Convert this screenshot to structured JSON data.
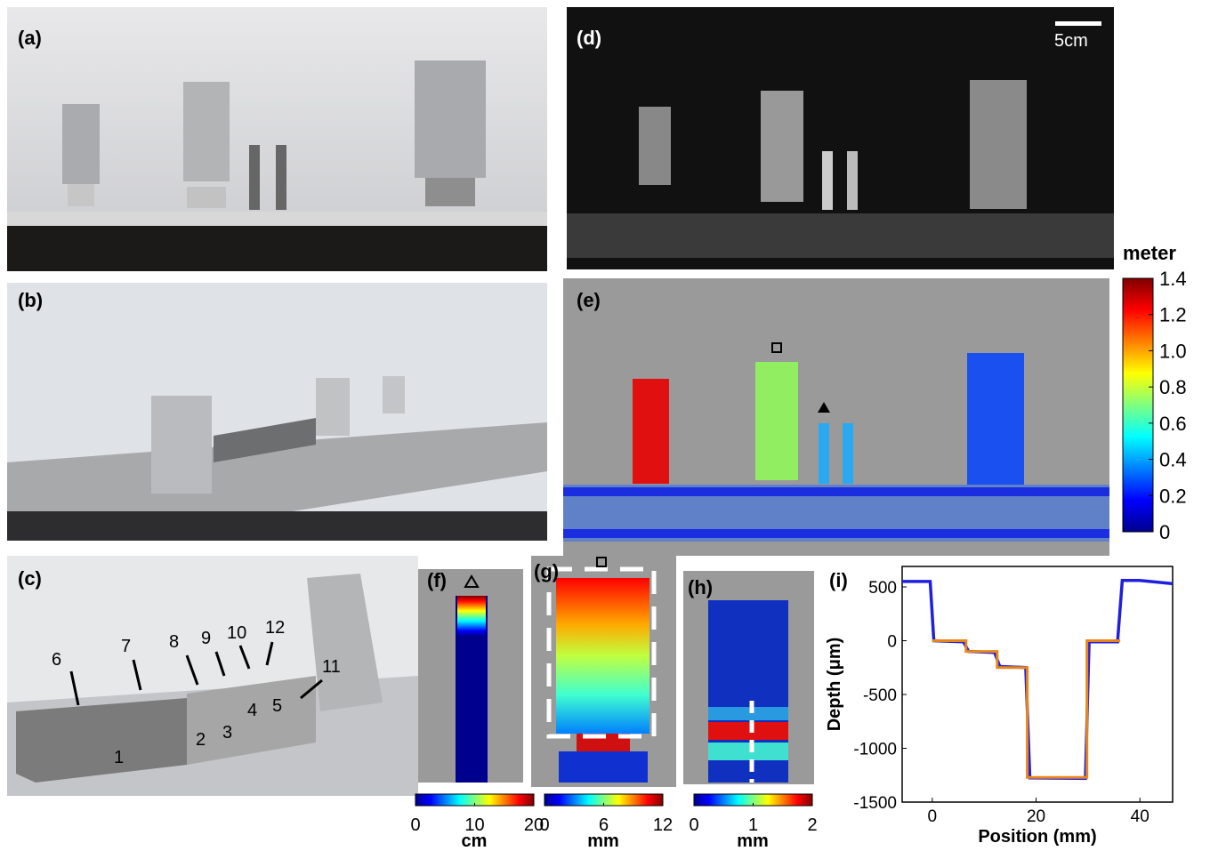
{
  "panel_labels": [
    "(a)",
    "(b)",
    "(c)",
    "(d)",
    "(e)",
    "(f)",
    "(g)",
    "(h)",
    "(i)"
  ],
  "scale_bar": "5cm",
  "part_labels": [
    "1",
    "2",
    "3",
    "4",
    "5",
    "6",
    "7",
    "8",
    "9",
    "10",
    "11",
    "12"
  ],
  "colorbar_e": {
    "title": "meter",
    "ticks": [
      0,
      0.2,
      0.4,
      0.6,
      0.8,
      {
        "value": 1.0,
        "label": "1.0"
      },
      1.2,
      1.4
    ]
  },
  "colorbar_f": {
    "unit": "cm",
    "ticks": [
      0,
      10,
      20
    ]
  },
  "colorbar_g": {
    "unit": "mm",
    "ticks": [
      0,
      6,
      12
    ]
  },
  "colorbar_h": {
    "unit": "mm",
    "ticks": [
      0,
      1,
      2
    ]
  },
  "chart_data": {
    "type": "line",
    "xlabel": "Position (mm)",
    "ylabel": "Depth (μm)",
    "xlim": [
      -5.8,
      46.3
    ],
    "ylim": [
      -1500,
      690
    ],
    "xticks": [
      0,
      20,
      40
    ],
    "yticks": [
      -1500,
      -1000,
      -500,
      0,
      500
    ],
    "series": [
      {
        "color": "#1f1fe0",
        "x": [
          -5.8,
          -0.4,
          0.3,
          6,
          7,
          12,
          13,
          18,
          18.8,
          29.5,
          30.2,
          35.7,
          36.6,
          40,
          46.3
        ],
        "values": [
          550,
          550,
          0,
          -10,
          -100,
          -110,
          -240,
          -250,
          -1275,
          -1280,
          -10,
          -10,
          560,
          560,
          530
        ]
      },
      {
        "color": "#e8861a",
        "x": [
          0,
          6.5,
          6.5,
          12.5,
          12.5,
          18.3,
          18.3,
          29.8,
          29.8,
          36.2
        ],
        "values": [
          0,
          0,
          -100,
          -100,
          -250,
          -250,
          -1270,
          -1270,
          0,
          0
        ]
      }
    ]
  }
}
